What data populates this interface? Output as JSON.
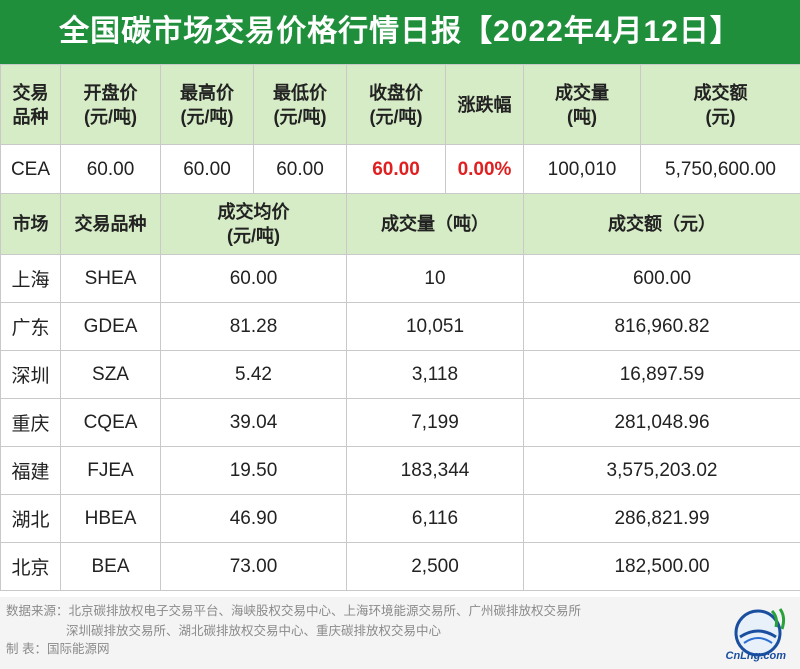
{
  "title": "全国碳市场交易价格行情日报【2022年4月12日】",
  "national": {
    "headers": [
      "交易品种",
      "开盘价 (元/吨)",
      "最高价 (元/吨)",
      "最低价 (元/吨)",
      "收盘价 (元/吨)",
      "涨跌幅",
      "成交量 (吨)",
      "成交额 (元)"
    ],
    "header_lines": [
      [
        "交易",
        "品种"
      ],
      [
        "开盘价",
        "(元/吨)"
      ],
      [
        "最高价",
        "(元/吨)"
      ],
      [
        "最低价",
        "(元/吨)"
      ],
      [
        "收盘价",
        "(元/吨)"
      ],
      [
        "涨跌幅",
        ""
      ],
      [
        "成交量",
        "(吨)"
      ],
      [
        "成交额",
        "(元)"
      ]
    ],
    "row": [
      "CEA",
      "60.00",
      "60.00",
      "60.00",
      "60.00",
      "0.00%",
      "100,010",
      "5,750,600.00"
    ]
  },
  "regional": {
    "headers": {
      "market": "市场",
      "product": "交易品种",
      "avg_price_l1": "成交均价",
      "avg_price_l2": "(元/吨)",
      "volume": "成交量（吨）",
      "amount": "成交额（元）"
    },
    "rows": [
      {
        "market": "上海",
        "product": "SHEA",
        "avg": "60.00",
        "volume": "10",
        "amount": "600.00"
      },
      {
        "market": "广东",
        "product": "GDEA",
        "avg": "81.28",
        "volume": "10,051",
        "amount": "816,960.82"
      },
      {
        "market": "深圳",
        "product": "SZA",
        "avg": "5.42",
        "volume": "3,118",
        "amount": "16,897.59"
      },
      {
        "market": "重庆",
        "product": "CQEA",
        "avg": "39.04",
        "volume": "7,199",
        "amount": "281,048.96"
      },
      {
        "market": "福建",
        "product": "FJEA",
        "avg": "19.50",
        "volume": "183,344",
        "amount": "3,575,203.02"
      },
      {
        "market": "湖北",
        "product": "HBEA",
        "avg": "46.90",
        "volume": "6,116",
        "amount": "286,821.99"
      },
      {
        "market": "北京",
        "product": "BEA",
        "avg": "73.00",
        "volume": "2,500",
        "amount": "182,500.00"
      }
    ]
  },
  "footer": {
    "source_line1": "数据来源：北京碳排放权电子交易平台、海峡股权交易中心、上海环境能源交易所、广州碳排放权交易所",
    "source_line2": "深圳碳排放交易所、湖北碳排放权交易中心、重庆碳排放权交易中心",
    "maker": "制    表：国际能源网"
  },
  "logo": {
    "text": "CnLng.com",
    "icon": "cnlng-logo-icon"
  },
  "colors": {
    "title_bg": "#1f8f3c",
    "header_bg": "#d6ecc6",
    "highlight": "#e02020"
  }
}
